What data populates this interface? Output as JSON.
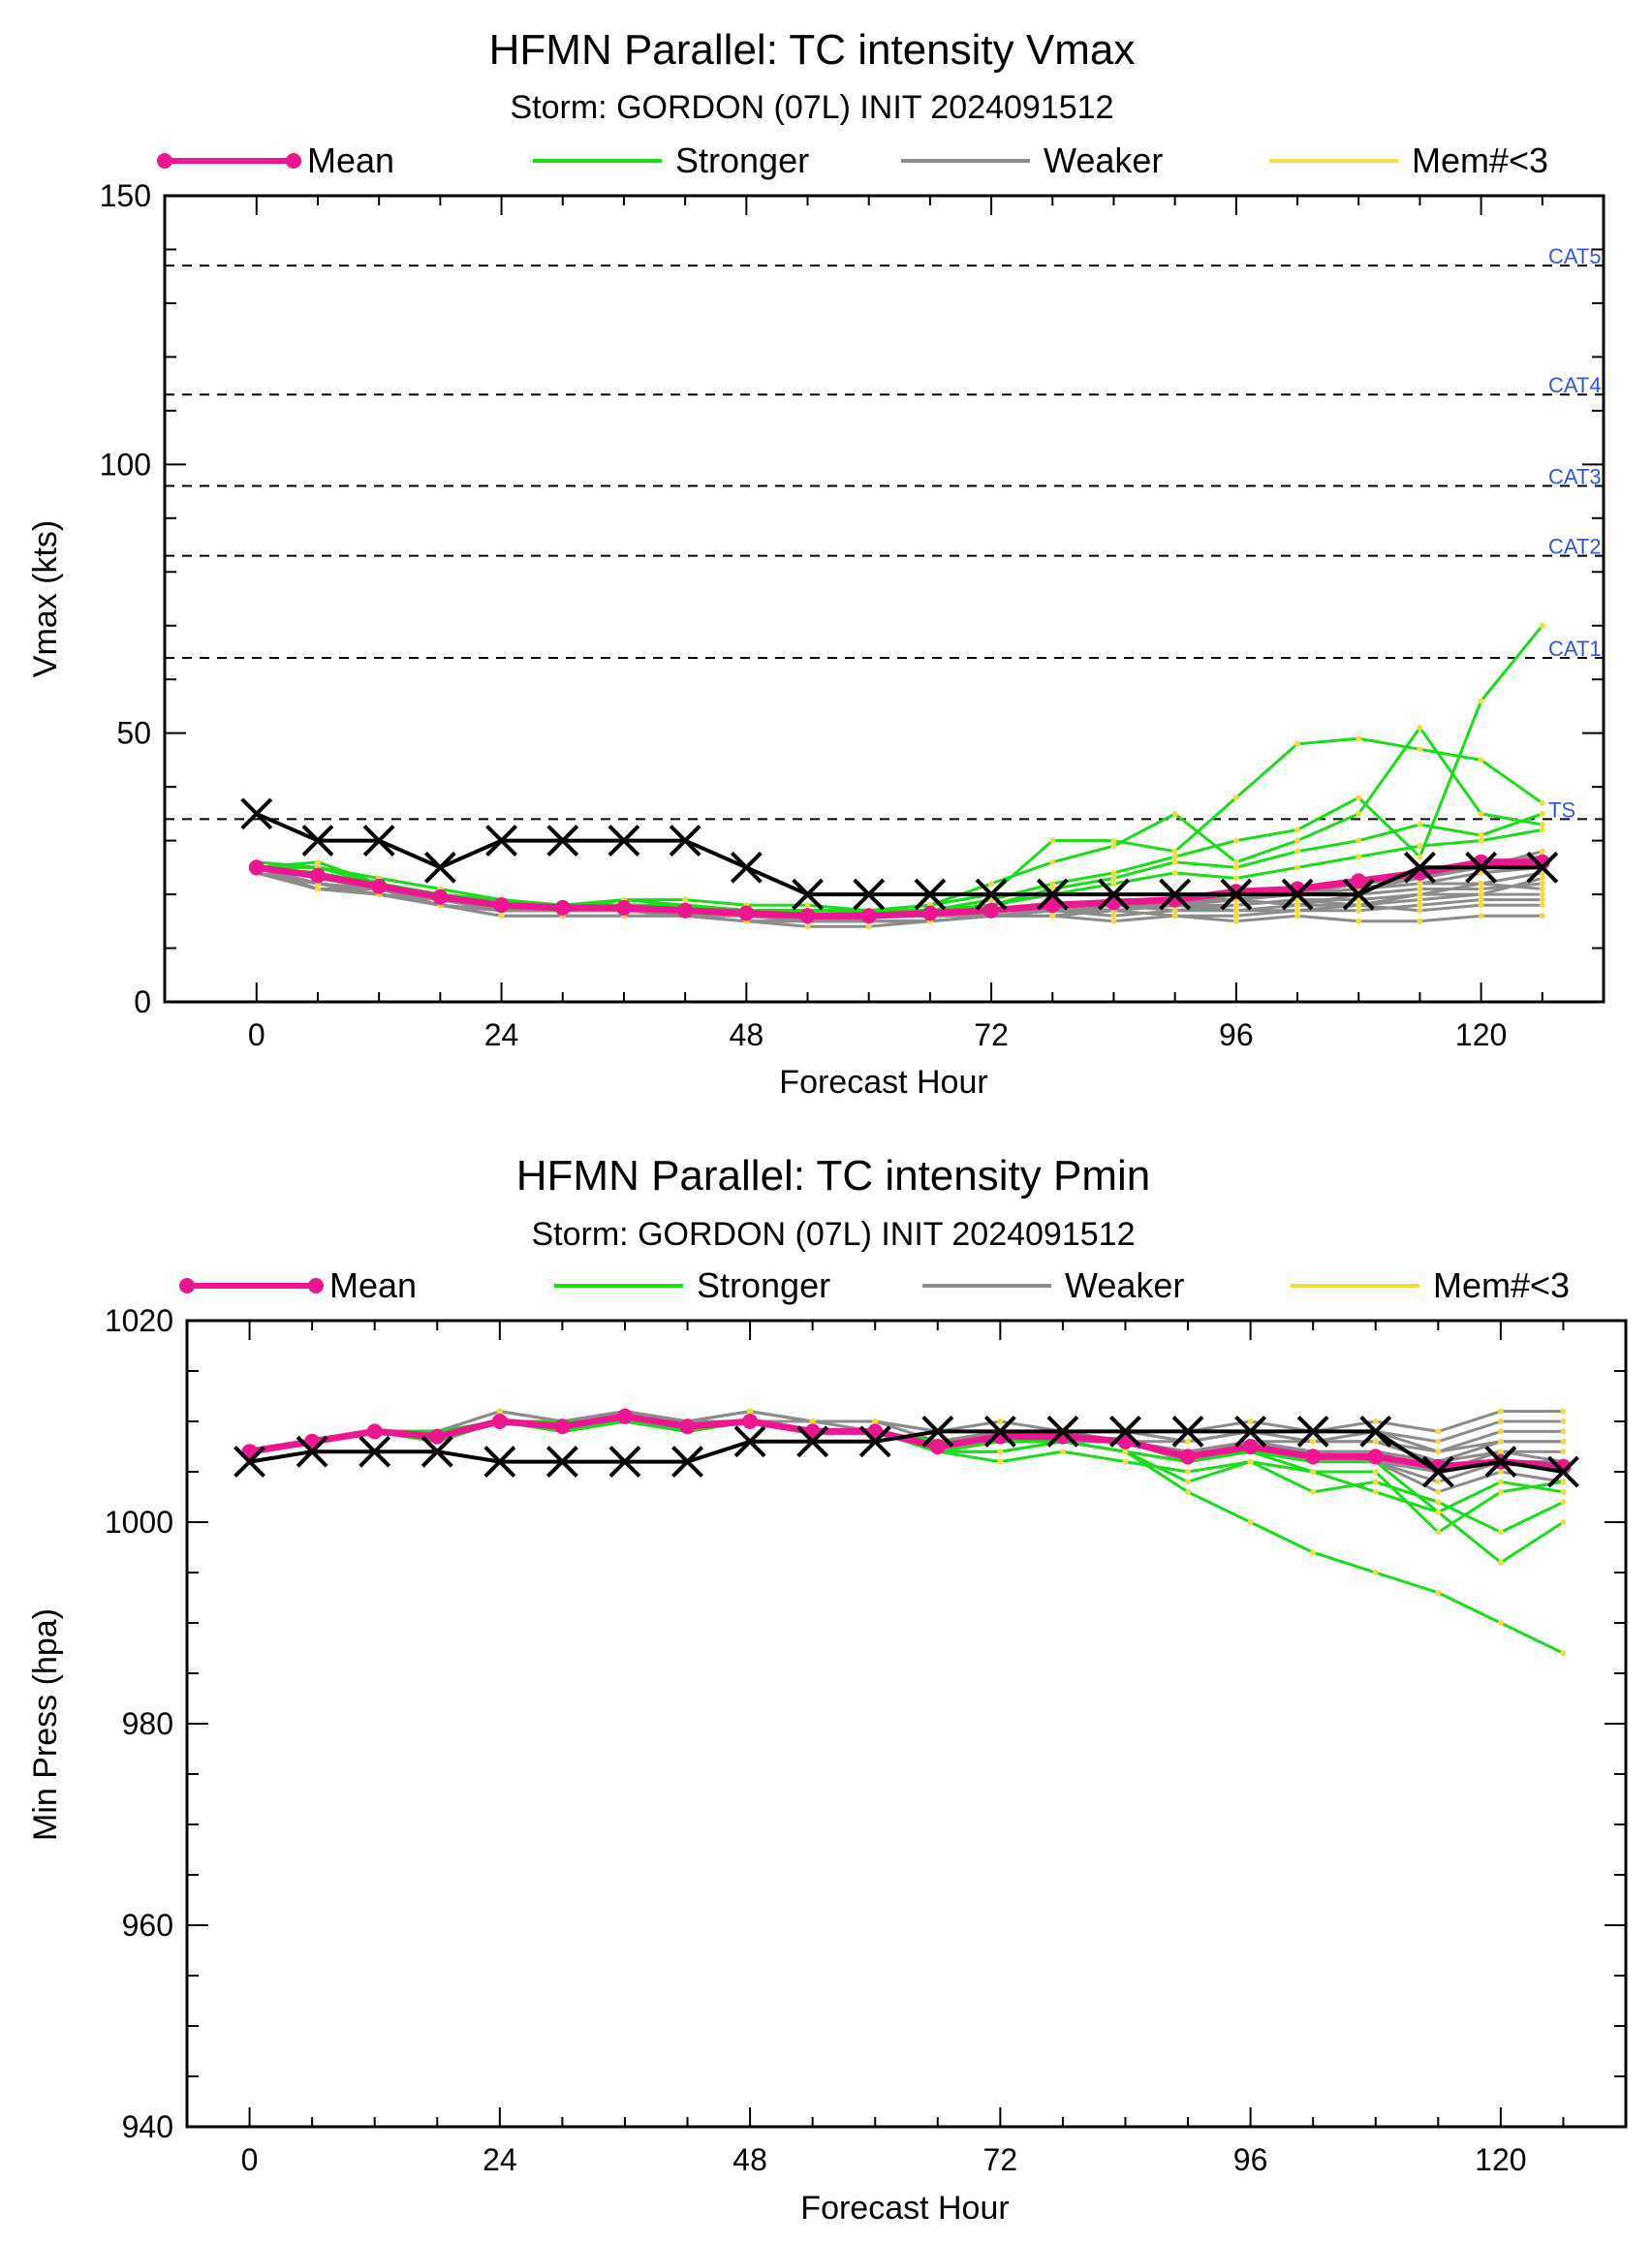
{
  "colors": {
    "mean": "#ee1690",
    "stronger": "#18dd18",
    "weaker": "#8c8c8c",
    "mem_lt3": "#f2dc3c",
    "observed": "#000000",
    "threshold": "#000000",
    "cat_label": "#3355ee"
  },
  "legend": [
    "Mean",
    "Stronger",
    "Weaker",
    "Mem#<3"
  ],
  "chart_data": [
    {
      "type": "line",
      "title": "HFMN Parallel: TC intensity Vmax",
      "subtitle": "Storm: GORDON (07L) INIT 2024091512",
      "xlabel": "Forecast Hour",
      "ylabel": "Vmax (kts)",
      "xlim": [
        -9,
        132
      ],
      "ylim": [
        0,
        150
      ],
      "xticks": [
        0,
        24,
        48,
        72,
        96,
        120
      ],
      "yticks": [
        0,
        50,
        100,
        150
      ],
      "x": [
        0,
        6,
        12,
        18,
        24,
        30,
        36,
        42,
        48,
        54,
        60,
        66,
        72,
        78,
        84,
        90,
        96,
        102,
        108,
        114,
        120,
        126
      ],
      "thresholds": [
        {
          "label": "CAT5",
          "value": 137
        },
        {
          "label": "CAT4",
          "value": 113
        },
        {
          "label": "CAT3",
          "value": 96
        },
        {
          "label": "CAT2",
          "value": 83
        },
        {
          "label": "CAT1",
          "value": 64
        },
        {
          "label": "TS",
          "value": 34
        }
      ],
      "series": [
        {
          "name": "Mean",
          "values": [
            25,
            23.5,
            21.5,
            19.5,
            18,
            17.5,
            17.5,
            17,
            16.5,
            16,
            16,
            16.5,
            17,
            18,
            18.5,
            19,
            20.5,
            21,
            22.5,
            24,
            26,
            26
          ]
        },
        {
          "name": "Observed",
          "values": [
            35,
            30,
            30,
            25,
            30,
            30,
            30,
            30,
            25,
            20,
            20,
            20,
            20,
            20,
            20,
            20,
            20,
            20,
            20,
            25,
            25,
            25
          ]
        }
      ],
      "members_stronger": [
        [
          25,
          26,
          22,
          20,
          18,
          17,
          19,
          18,
          17,
          17,
          17,
          18,
          20,
          30,
          30,
          28,
          38,
          48,
          49,
          47,
          45,
          37
        ],
        [
          25,
          25,
          22,
          20,
          19,
          18,
          18,
          18,
          17,
          17,
          17,
          17,
          19,
          22,
          24,
          27,
          30,
          32,
          38,
          27,
          56,
          70
        ],
        [
          26,
          25,
          22,
          20,
          18,
          18,
          19,
          19,
          18,
          18,
          17,
          18,
          22,
          26,
          29,
          35,
          26,
          30,
          35,
          51,
          35,
          33
        ],
        [
          25,
          25,
          23,
          21,
          19,
          18,
          18,
          18,
          17,
          17,
          17,
          17,
          18,
          21,
          23,
          26,
          25,
          28,
          30,
          33,
          31,
          35
        ],
        [
          25,
          24,
          22,
          20,
          18,
          18,
          18,
          18,
          17,
          16,
          17,
          17,
          18,
          20,
          22,
          24,
          23,
          25,
          27,
          29,
          30,
          32
        ]
      ],
      "members_weaker": [
        [
          24,
          21,
          20,
          18,
          16,
          16,
          16,
          16,
          15,
          14,
          14,
          15,
          16,
          16,
          15,
          16,
          15,
          16,
          15,
          15,
          16,
          16
        ],
        [
          25,
          22,
          20,
          18,
          17,
          17,
          17,
          16,
          15,
          15,
          15,
          15,
          16,
          17,
          16,
          17,
          17,
          18,
          18,
          17,
          18,
          18
        ],
        [
          24,
          21,
          20,
          18,
          16,
          16,
          16,
          16,
          15,
          15,
          15,
          15,
          16,
          16,
          17,
          16,
          16,
          17,
          17,
          18,
          19,
          19
        ],
        [
          25,
          21,
          21,
          18,
          17,
          17,
          17,
          17,
          16,
          16,
          15,
          15,
          16,
          16,
          17,
          18,
          17,
          17,
          18,
          19,
          20,
          20
        ],
        [
          24,
          22,
          21,
          19,
          17,
          17,
          17,
          17,
          16,
          16,
          16,
          16,
          17,
          17,
          18,
          17,
          18,
          19,
          18,
          20,
          22,
          21
        ],
        [
          25,
          22,
          21,
          19,
          17,
          17,
          17,
          17,
          16,
          16,
          16,
          16,
          17,
          18,
          17,
          18,
          19,
          18,
          20,
          21,
          21,
          22
        ],
        [
          24,
          21,
          20,
          18,
          17,
          17,
          17,
          17,
          16,
          15,
          16,
          16,
          16,
          17,
          18,
          18,
          18,
          19,
          19,
          20,
          20,
          23
        ],
        [
          25,
          22,
          21,
          19,
          18,
          17,
          17,
          17,
          16,
          16,
          16,
          16,
          17,
          17,
          18,
          19,
          19,
          20,
          21,
          22,
          22,
          24
        ],
        [
          24,
          22,
          20,
          18,
          17,
          17,
          17,
          16,
          16,
          16,
          16,
          16,
          17,
          18,
          18,
          19,
          20,
          20,
          21,
          22,
          24,
          25
        ],
        [
          25,
          23,
          21,
          19,
          18,
          17,
          17,
          17,
          16,
          16,
          16,
          16,
          17,
          18,
          19,
          19,
          19,
          21,
          22,
          24,
          25,
          26
        ],
        [
          24,
          22,
          21,
          19,
          17,
          17,
          17,
          17,
          16,
          16,
          16,
          16,
          16,
          17,
          18,
          18,
          20,
          20,
          22,
          23,
          26,
          27
        ],
        [
          25,
          22,
          20,
          19,
          17,
          17,
          17,
          17,
          16,
          15,
          15,
          15,
          16,
          17,
          17,
          18,
          19,
          20,
          21,
          23,
          25,
          28
        ]
      ]
    },
    {
      "type": "line",
      "title": "HFMN Parallel: TC intensity Pmin",
      "subtitle": "Storm: GORDON (07L) INIT 2024091512",
      "xlabel": "Forecast Hour",
      "ylabel": "Min Press (hpa)",
      "xlim": [
        -6,
        132
      ],
      "ylim": [
        940,
        1020
      ],
      "xticks": [
        0,
        24,
        48,
        72,
        96,
        120
      ],
      "yticks": [
        940,
        960,
        980,
        1000,
        1020
      ],
      "x": [
        0,
        6,
        12,
        18,
        24,
        30,
        36,
        42,
        48,
        54,
        60,
        66,
        72,
        78,
        84,
        90,
        96,
        102,
        108,
        114,
        120,
        126
      ],
      "series": [
        {
          "name": "Mean",
          "values": [
            1007,
            1008,
            1009,
            1008.5,
            1010,
            1009.5,
            1010.5,
            1009.5,
            1010,
            1009,
            1009,
            1007.5,
            1008.5,
            1008.5,
            1008,
            1006.5,
            1007.5,
            1006.5,
            1006.5,
            1005.5,
            1006,
            1005.5
          ]
        },
        {
          "name": "Observed",
          "values": [
            1006,
            1007,
            1007,
            1007,
            1006,
            1006,
            1006,
            1006,
            1008,
            1008,
            1008,
            1009,
            1009,
            1009,
            1009,
            1009,
            1009,
            1009,
            1009,
            1005,
            1006,
            1005
          ]
        }
      ],
      "members_stronger": [
        [
          1007,
          1008,
          1009,
          1009,
          1010,
          1009,
          1010,
          1009,
          1010,
          1009,
          1009,
          1008,
          1008,
          1008,
          1007,
          1003,
          1000,
          997,
          995,
          993,
          990,
          987
        ],
        [
          1007,
          1008,
          1009,
          1009,
          1010,
          1009,
          1010,
          1009,
          1010,
          1009,
          1009,
          1007,
          1007,
          1008,
          1007,
          1004,
          1006,
          1005,
          1003,
          1001,
          996,
          1000
        ],
        [
          1007,
          1008,
          1009,
          1009,
          1010,
          1010,
          1010,
          1009,
          1010,
          1009,
          1009,
          1007,
          1006,
          1007,
          1006,
          1005,
          1006,
          1003,
          1004,
          1002,
          999,
          1002
        ],
        [
          1007,
          1008,
          1009,
          1008,
          1010,
          1009,
          1010,
          1009,
          1010,
          1009,
          1009,
          1007,
          1007,
          1008,
          1007,
          1006,
          1007,
          1005,
          1005,
          999,
          1003,
          1004
        ],
        [
          1007,
          1008,
          1009,
          1009,
          1010,
          1009,
          1010,
          1009,
          1010,
          1009,
          1009,
          1007,
          1008,
          1008,
          1007,
          1006,
          1007,
          1006,
          1006,
          1001,
          1004,
          1003
        ]
      ],
      "members_weaker": [
        [
          1007,
          1008,
          1009,
          1009,
          1011,
          1010,
          1011,
          1010,
          1011,
          1010,
          1010,
          1009,
          1010,
          1009,
          1009,
          1009,
          1010,
          1009,
          1010,
          1009,
          1011,
          1011
        ],
        [
          1007,
          1008,
          1009,
          1009,
          1011,
          1010,
          1011,
          1010,
          1011,
          1010,
          1010,
          1009,
          1009,
          1009,
          1009,
          1008,
          1009,
          1009,
          1009,
          1008,
          1010,
          1010
        ],
        [
          1007,
          1008,
          1009,
          1009,
          1010,
          1010,
          1011,
          1010,
          1011,
          1010,
          1010,
          1009,
          1009,
          1009,
          1009,
          1008,
          1009,
          1008,
          1009,
          1007,
          1009,
          1009
        ],
        [
          1007,
          1008,
          1009,
          1009,
          1010,
          1010,
          1010,
          1010,
          1010,
          1010,
          1010,
          1008,
          1009,
          1009,
          1008,
          1008,
          1009,
          1008,
          1008,
          1007,
          1008,
          1008
        ],
        [
          1007,
          1008,
          1009,
          1009,
          1010,
          1010,
          1010,
          1009,
          1010,
          1010,
          1009,
          1008,
          1009,
          1009,
          1008,
          1007,
          1008,
          1008,
          1008,
          1006,
          1008,
          1008
        ],
        [
          1007,
          1008,
          1009,
          1009,
          1010,
          1010,
          1010,
          1009,
          1010,
          1009,
          1009,
          1008,
          1009,
          1008,
          1008,
          1007,
          1008,
          1007,
          1007,
          1006,
          1007,
          1007
        ],
        [
          1007,
          1008,
          1009,
          1008,
          1010,
          1009,
          1010,
          1009,
          1010,
          1009,
          1009,
          1008,
          1008,
          1008,
          1008,
          1007,
          1008,
          1007,
          1007,
          1005,
          1007,
          1006
        ],
        [
          1007,
          1008,
          1009,
          1008,
          1010,
          1009,
          1010,
          1009,
          1010,
          1009,
          1009,
          1008,
          1008,
          1008,
          1008,
          1007,
          1007,
          1007,
          1006,
          1005,
          1006,
          1006
        ],
        [
          1007,
          1008,
          1009,
          1008,
          1010,
          1009,
          1010,
          1009,
          1010,
          1009,
          1009,
          1008,
          1008,
          1008,
          1008,
          1006,
          1007,
          1006,
          1006,
          1004,
          1006,
          1005
        ],
        [
          1007,
          1008,
          1009,
          1008,
          1010,
          1009,
          1010,
          1009,
          1010,
          1009,
          1009,
          1008,
          1008,
          1008,
          1007,
          1006,
          1007,
          1006,
          1006,
          1003,
          1005,
          1004
        ]
      ]
    }
  ]
}
